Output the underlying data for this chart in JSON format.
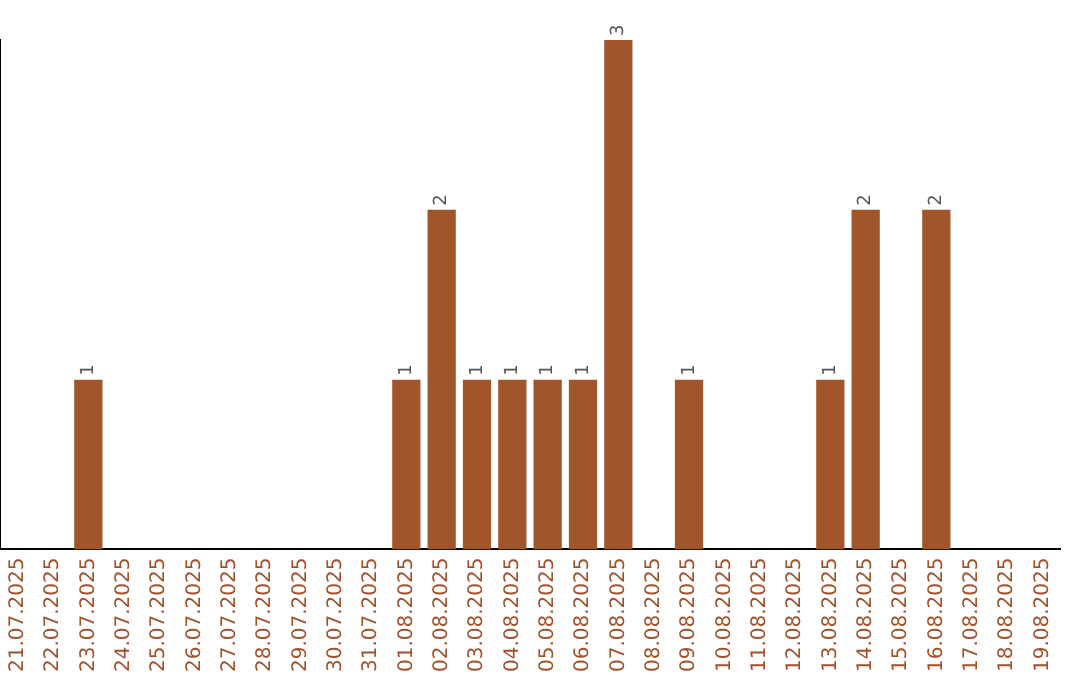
{
  "chart_data": {
    "type": "bar",
    "categories": [
      "21.07.2025",
      "22.07.2025",
      "23.07.2025",
      "24.07.2025",
      "25.07.2025",
      "26.07.2025",
      "27.07.2025",
      "28.07.2025",
      "29.07.2025",
      "30.07.2025",
      "31.07.2025",
      "01.08.2025",
      "02.08.2025",
      "03.08.2025",
      "04.08.2025",
      "05.08.2025",
      "06.08.2025",
      "07.08.2025",
      "08.08.2025",
      "09.08.2025",
      "10.08.2025",
      "11.08.2025",
      "12.08.2025",
      "13.08.2025",
      "14.08.2025",
      "15.08.2025",
      "16.08.2025",
      "17.08.2025",
      "18.08.2025",
      "19.08.2025"
    ],
    "values": [
      0,
      0,
      1,
      0,
      0,
      0,
      0,
      0,
      0,
      0,
      0,
      1,
      2,
      1,
      1,
      1,
      1,
      3,
      0,
      1,
      0,
      0,
      0,
      1,
      2,
      0,
      2,
      0,
      0,
      0
    ],
    "value_labels": [
      null,
      null,
      "1",
      null,
      null,
      null,
      null,
      null,
      null,
      null,
      null,
      "1",
      "2",
      "1",
      "1",
      "1",
      "1",
      "3",
      null,
      "1",
      null,
      null,
      null,
      "1",
      "2",
      null,
      "2",
      null,
      null,
      null
    ],
    "color": "#a0562a",
    "grid": false,
    "legend": false
  }
}
